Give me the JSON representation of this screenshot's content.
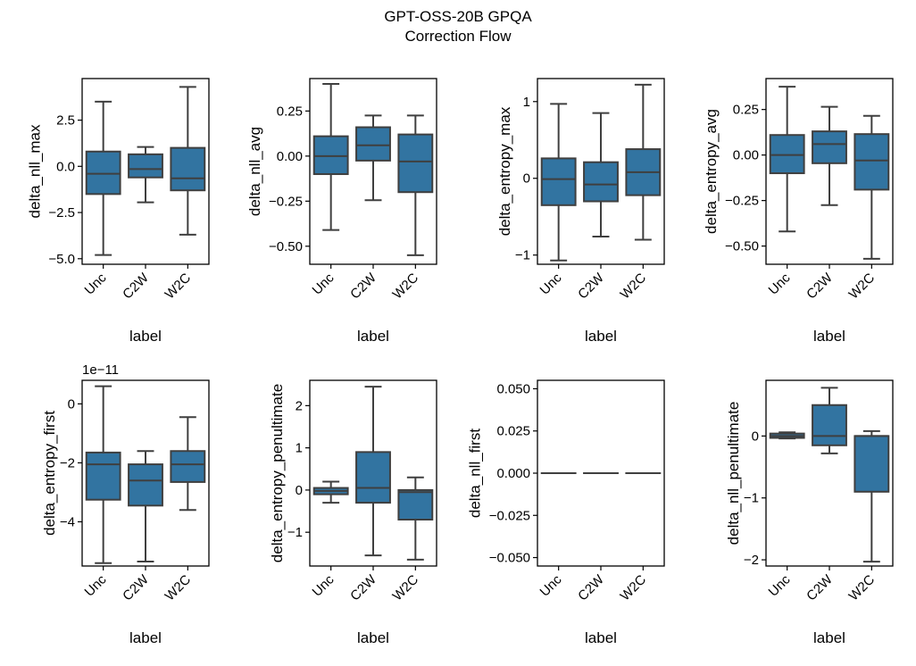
{
  "figure": {
    "title": "GPT-OSS-20B GPQA",
    "subtitle": "Correction Flow"
  },
  "chart_data": [
    {
      "type": "box",
      "xlabel": "label",
      "ylabel": "delta_nll_max",
      "categories": [
        "Unc",
        "C2W",
        "W2C"
      ],
      "ylim": [
        -5.3,
        4.75
      ],
      "yticks": [
        -5.0,
        -2.5,
        0.0,
        2.5
      ],
      "ytick_labels": [
        "−5.0",
        "−2.5",
        "0.0",
        "2.5"
      ],
      "boxes": [
        {
          "whislo": -4.8,
          "q1": -1.5,
          "med": -0.4,
          "q3": 0.8,
          "whishi": 3.5
        },
        {
          "whislo": -1.95,
          "q1": -0.6,
          "med": -0.15,
          "q3": 0.65,
          "whishi": 1.05
        },
        {
          "whislo": -3.7,
          "q1": -1.3,
          "med": -0.65,
          "q3": 1.0,
          "whishi": 4.3
        }
      ]
    },
    {
      "type": "box",
      "xlabel": "label",
      "ylabel": "delta_nll_avg",
      "categories": [
        "Unc",
        "C2W",
        "W2C"
      ],
      "ylim": [
        -0.6,
        0.43
      ],
      "yticks": [
        -0.5,
        -0.25,
        0.0,
        0.25
      ],
      "ytick_labels": [
        "−0.50",
        "−0.25",
        "0.00",
        "0.25"
      ],
      "boxes": [
        {
          "whislo": -0.41,
          "q1": -0.1,
          "med": 0.0,
          "q3": 0.11,
          "whishi": 0.4
        },
        {
          "whislo": -0.245,
          "q1": -0.025,
          "med": 0.06,
          "q3": 0.16,
          "whishi": 0.225
        },
        {
          "whislo": -0.55,
          "q1": -0.2,
          "med": -0.03,
          "q3": 0.12,
          "whishi": 0.225
        }
      ]
    },
    {
      "type": "box",
      "xlabel": "label",
      "ylabel": "delta_entropy_max",
      "categories": [
        "Unc",
        "C2W",
        "W2C"
      ],
      "ylim": [
        -1.12,
        1.3
      ],
      "yticks": [
        -1,
        0,
        1
      ],
      "ytick_labels": [
        "−1",
        "0",
        "1"
      ],
      "boxes": [
        {
          "whislo": -1.07,
          "q1": -0.35,
          "med": -0.01,
          "q3": 0.26,
          "whishi": 0.97
        },
        {
          "whislo": -0.76,
          "q1": -0.3,
          "med": -0.08,
          "q3": 0.21,
          "whishi": 0.85
        },
        {
          "whislo": -0.8,
          "q1": -0.22,
          "med": 0.08,
          "q3": 0.38,
          "whishi": 1.22
        }
      ]
    },
    {
      "type": "box",
      "xlabel": "label",
      "ylabel": "delta_entropy_avg",
      "categories": [
        "Unc",
        "C2W",
        "W2C"
      ],
      "ylim": [
        -0.6,
        0.42
      ],
      "yticks": [
        -0.5,
        -0.25,
        0.0,
        0.25
      ],
      "ytick_labels": [
        "−0.50",
        "−0.25",
        "0.00",
        "0.25"
      ],
      "boxes": [
        {
          "whislo": -0.42,
          "q1": -0.1,
          "med": 0.0,
          "q3": 0.11,
          "whishi": 0.375
        },
        {
          "whislo": -0.275,
          "q1": -0.045,
          "med": 0.06,
          "q3": 0.13,
          "whishi": 0.265
        },
        {
          "whislo": -0.57,
          "q1": -0.19,
          "med": -0.03,
          "q3": 0.115,
          "whishi": 0.215
        }
      ]
    },
    {
      "type": "box",
      "xlabel": "label",
      "ylabel": "delta_entropy_first",
      "offset_text": "1e−11",
      "categories": [
        "Unc",
        "C2W",
        "W2C"
      ],
      "ylim": [
        -5.5,
        0.8
      ],
      "yticks": [
        -4,
        -2,
        0
      ],
      "ytick_labels": [
        "−4",
        "−2",
        "0"
      ],
      "boxes": [
        {
          "whislo": -5.4,
          "q1": -3.25,
          "med": -2.05,
          "q3": -1.65,
          "whishi": 0.6
        },
        {
          "whislo": -5.35,
          "q1": -3.45,
          "med": -2.6,
          "q3": -2.05,
          "whishi": -1.6
        },
        {
          "whislo": -3.6,
          "q1": -2.65,
          "med": -2.05,
          "q3": -1.6,
          "whishi": -0.45
        }
      ]
    },
    {
      "type": "box",
      "xlabel": "label",
      "ylabel": "delta_entropy_penultimate",
      "categories": [
        "Unc",
        "C2W",
        "W2C"
      ],
      "ylim": [
        -1.8,
        2.6
      ],
      "yticks": [
        -1,
        0,
        1,
        2
      ],
      "ytick_labels": [
        "−1",
        "0",
        "1",
        "2"
      ],
      "boxes": [
        {
          "whislo": -0.3,
          "q1": -0.1,
          "med": -0.02,
          "q3": 0.05,
          "whishi": 0.2
        },
        {
          "whislo": -1.55,
          "q1": -0.3,
          "med": 0.05,
          "q3": 0.9,
          "whishi": 2.45
        },
        {
          "whislo": -1.65,
          "q1": -0.7,
          "med": -0.05,
          "q3": 0.0,
          "whishi": 0.3
        }
      ]
    },
    {
      "type": "box",
      "xlabel": "label",
      "ylabel": "delta_nll_first",
      "categories": [
        "Unc",
        "C2W",
        "W2C"
      ],
      "ylim": [
        -0.055,
        0.055
      ],
      "yticks": [
        -0.05,
        -0.025,
        0.0,
        0.025,
        0.05
      ],
      "ytick_labels": [
        "−0.050",
        "−0.025",
        "0.000",
        "0.025",
        "0.050"
      ],
      "boxes": [
        {
          "whislo": 0.0,
          "q1": 0.0,
          "med": 0.0,
          "q3": 0.0,
          "whishi": 0.0
        },
        {
          "whislo": 0.0,
          "q1": 0.0,
          "med": 0.0,
          "q3": 0.0,
          "whishi": 0.0
        },
        {
          "whislo": 0.0,
          "q1": 0.0,
          "med": 0.0,
          "q3": 0.0,
          "whishi": 0.0
        }
      ]
    },
    {
      "type": "box",
      "xlabel": "label",
      "ylabel": "delta_nll_penultimate",
      "categories": [
        "Unc",
        "C2W",
        "W2C"
      ],
      "ylim": [
        -2.1,
        0.9
      ],
      "yticks": [
        -2,
        -1,
        0
      ],
      "ytick_labels": [
        "−2",
        "−1",
        "0"
      ],
      "boxes": [
        {
          "whislo": -0.04,
          "q1": -0.03,
          "med": 0.0,
          "q3": 0.04,
          "whishi": 0.06
        },
        {
          "whislo": -0.28,
          "q1": -0.15,
          "med": 0.0,
          "q3": 0.5,
          "whishi": 0.78
        },
        {
          "whislo": -2.03,
          "q1": -0.9,
          "med": 0.0,
          "q3": 0.0,
          "whishi": 0.08
        }
      ]
    }
  ],
  "style": {
    "box_fill": "#3274a1",
    "line_color": "#3f3f3f",
    "axis_color": "#000000"
  }
}
